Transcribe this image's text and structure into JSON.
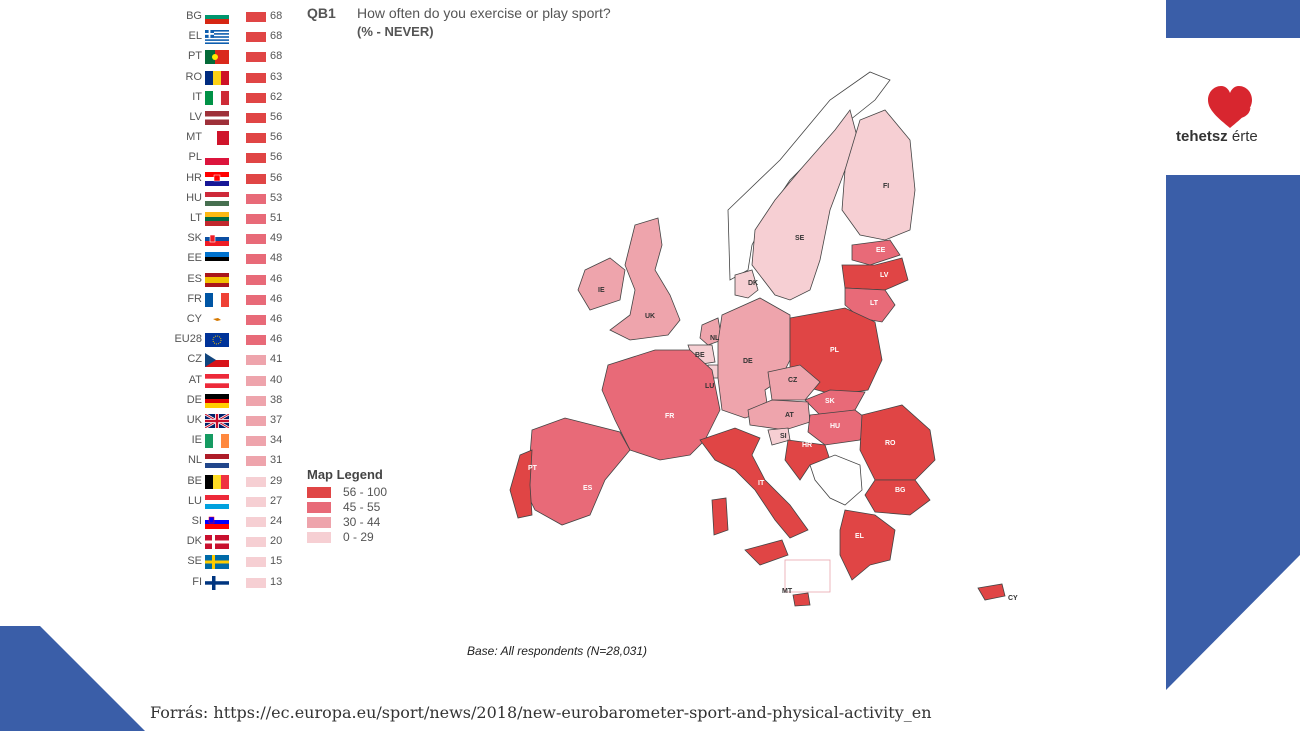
{
  "question": {
    "code": "QB1",
    "text": "How often do you exercise or play sport?",
    "subtitle": "(% - NEVER)"
  },
  "countries": [
    {
      "code": "BG",
      "value": "68",
      "flag": "bg"
    },
    {
      "code": "EL",
      "value": "68",
      "flag": "el"
    },
    {
      "code": "PT",
      "value": "68",
      "flag": "pt"
    },
    {
      "code": "RO",
      "value": "63",
      "flag": "ro"
    },
    {
      "code": "IT",
      "value": "62",
      "flag": "it"
    },
    {
      "code": "LV",
      "value": "56",
      "flag": "lv"
    },
    {
      "code": "MT",
      "value": "56",
      "flag": "mt"
    },
    {
      "code": "PL",
      "value": "56",
      "flag": "pl"
    },
    {
      "code": "HR",
      "value": "56",
      "flag": "hr"
    },
    {
      "code": "HU",
      "value": "53",
      "flag": "hu"
    },
    {
      "code": "LT",
      "value": "51",
      "flag": "lt"
    },
    {
      "code": "SK",
      "value": "49",
      "flag": "sk"
    },
    {
      "code": "EE",
      "value": "48",
      "flag": "ee"
    },
    {
      "code": "ES",
      "value": "46",
      "flag": "es"
    },
    {
      "code": "FR",
      "value": "46",
      "flag": "fr"
    },
    {
      "code": "CY",
      "value": "46",
      "flag": "cy"
    },
    {
      "code": "EU28",
      "value": "46",
      "flag": "eu"
    },
    {
      "code": "CZ",
      "value": "41",
      "flag": "cz"
    },
    {
      "code": "AT",
      "value": "40",
      "flag": "at"
    },
    {
      "code": "DE",
      "value": "38",
      "flag": "de"
    },
    {
      "code": "UK",
      "value": "37",
      "flag": "uk"
    },
    {
      "code": "IE",
      "value": "34",
      "flag": "ie"
    },
    {
      "code": "NL",
      "value": "31",
      "flag": "nl"
    },
    {
      "code": "BE",
      "value": "29",
      "flag": "be"
    },
    {
      "code": "LU",
      "value": "27",
      "flag": "lu"
    },
    {
      "code": "SI",
      "value": "24",
      "flag": "si"
    },
    {
      "code": "DK",
      "value": "20",
      "flag": "dk"
    },
    {
      "code": "SE",
      "value": "15",
      "flag": "se"
    },
    {
      "code": "FI",
      "value": "13",
      "flag": "fi"
    }
  ],
  "legend": {
    "title": "Map Legend",
    "items": [
      {
        "label": "56 - 100",
        "color": "#e04545"
      },
      {
        "label": "45 - 55",
        "color": "#e86a78"
      },
      {
        "label": "30 - 44",
        "color": "#eea4ac"
      },
      {
        "label": "0 - 29",
        "color": "#f6cfd3"
      }
    ]
  },
  "map_labels": [
    "FI",
    "SE",
    "EE",
    "LV",
    "LT",
    "IE",
    "UK",
    "DK",
    "NL",
    "BE",
    "DE",
    "PL",
    "LU",
    "CZ",
    "FR",
    "SK",
    "AT",
    "HU",
    "SI",
    "HR",
    "RO",
    "PT",
    "ES",
    "IT",
    "BG",
    "EL",
    "MT",
    "CY"
  ],
  "base_note": "Base: All respondents (N=28,031)",
  "source": "Forrás: https://ec.europa.eu/sport/news/2018/new-eurobarometer-sport-and-physical-activity_en",
  "logo": {
    "brand": "tehetsz",
    "suffix": " érte"
  },
  "colors": {
    "accent_blue": "#3a5ea8",
    "heart_red": "#d8262f"
  }
}
